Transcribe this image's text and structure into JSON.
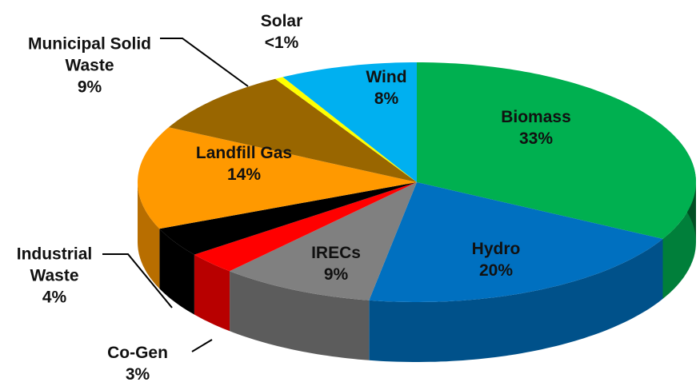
{
  "chart_data": {
    "type": "pie3d",
    "categories": [
      "Biomass",
      "Hydro",
      "IRECs",
      "Co-Gen",
      "Industrial Waste",
      "Landfill Gas",
      "Municipal Solid Waste",
      "Solar",
      "Wind"
    ],
    "values": [
      33,
      20,
      9,
      3,
      4,
      14,
      9,
      0.5,
      8
    ],
    "value_labels": [
      "33%",
      "20%",
      "9%",
      "3%",
      "4%",
      "14%",
      "9%",
      "<1%",
      "8%"
    ],
    "colors": [
      "#00b050",
      "#0070c0",
      "#808080",
      "#ff0000",
      "#000000",
      "#ff9900",
      "#996600",
      "#ffff00",
      "#00b0f0"
    ]
  }
}
